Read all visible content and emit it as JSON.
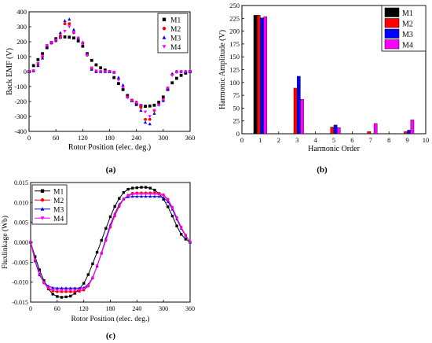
{
  "panels": {
    "a_label": "(a)",
    "b_label": "(b)",
    "c_label": "(c)"
  },
  "colors": {
    "M1": "#000000",
    "M2": "#ff0000",
    "M3": "#0000ff",
    "M4": "#ff00ff"
  },
  "chart_data": [
    {
      "id": "a",
      "type": "scatter",
      "xlabel": "Rotor Position (elec. deg.)",
      "ylabel": "Back EMF (V)",
      "xlim": [
        0,
        360
      ],
      "ylim": [
        -400,
        400
      ],
      "xticks": [
        0,
        60,
        120,
        180,
        240,
        300,
        360
      ],
      "yticks": [
        -400,
        -300,
        -200,
        -100,
        0,
        100,
        200,
        300,
        400
      ],
      "legend_position": "top-right",
      "x": [
        0,
        10,
        20,
        30,
        40,
        50,
        60,
        70,
        80,
        90,
        100,
        110,
        120,
        130,
        140,
        150,
        160,
        170,
        180,
        190,
        200,
        210,
        220,
        230,
        240,
        250,
        260,
        270,
        280,
        290,
        300,
        310,
        320,
        330,
        340,
        350,
        360
      ],
      "series": [
        {
          "name": "M1",
          "marker": "square",
          "values": [
            0,
            40,
            80,
            120,
            160,
            195,
            220,
            230,
            232,
            230,
            225,
            205,
            170,
            120,
            75,
            45,
            25,
            10,
            0,
            -40,
            -80,
            -120,
            -160,
            -195,
            -220,
            -230,
            -232,
            -230,
            -225,
            -205,
            -170,
            -120,
            -75,
            -45,
            -25,
            -10,
            0
          ]
        },
        {
          "name": "M2",
          "marker": "circle",
          "values": [
            0,
            5,
            50,
            100,
            170,
            190,
            205,
            240,
            320,
            320,
            260,
            220,
            190,
            110,
            20,
            0,
            0,
            0,
            0,
            -5,
            -50,
            -100,
            -170,
            -190,
            -205,
            -240,
            -320,
            -320,
            -260,
            -220,
            -190,
            -110,
            -20,
            0,
            0,
            0,
            0
          ]
        },
        {
          "name": "M3",
          "marker": "triangle-up",
          "values": [
            0,
            5,
            40,
            90,
            170,
            195,
            210,
            260,
            340,
            350,
            280,
            220,
            195,
            120,
            15,
            0,
            0,
            0,
            0,
            -5,
            -40,
            -90,
            -170,
            -195,
            -210,
            -260,
            -340,
            -350,
            -280,
            -220,
            -195,
            -120,
            -15,
            0,
            0,
            0,
            0
          ]
        },
        {
          "name": "M4",
          "marker": "triangle-down",
          "values": [
            0,
            5,
            55,
            105,
            175,
            195,
            210,
            225,
            270,
            300,
            260,
            225,
            190,
            110,
            25,
            5,
            0,
            0,
            0,
            -5,
            -55,
            -105,
            -175,
            -195,
            -210,
            -225,
            -270,
            -300,
            -260,
            -225,
            -190,
            -110,
            -25,
            -5,
            0,
            0,
            0
          ]
        }
      ]
    },
    {
      "id": "b",
      "type": "bar",
      "xlabel": "Harmonic Order",
      "ylabel": "Harmonic Amplitude (V)",
      "xlim": [
        0,
        10
      ],
      "ylim": [
        0,
        250
      ],
      "xticks": [
        0,
        1,
        2,
        3,
        4,
        5,
        6,
        7,
        8,
        9,
        10
      ],
      "yticks": [
        0,
        25,
        50,
        75,
        100,
        125,
        150,
        175,
        200,
        225,
        250
      ],
      "legend_position": "top-right",
      "categories": [
        1,
        3,
        5,
        7,
        9
      ],
      "series": [
        {
          "name": "M1",
          "values": [
            231,
            0,
            0,
            0,
            0
          ]
        },
        {
          "name": "M2",
          "values": [
            231,
            89,
            13,
            4,
            4
          ]
        },
        {
          "name": "M3",
          "values": [
            226,
            112,
            17,
            0,
            7
          ]
        },
        {
          "name": "M4",
          "values": [
            228,
            67,
            12,
            20,
            27
          ]
        }
      ]
    },
    {
      "id": "c",
      "type": "line",
      "xlabel": "Rotor Position (elec. deg.)",
      "ylabel": "Fluxlinkage (Wb)",
      "xlim": [
        0,
        360
      ],
      "ylim": [
        -0.015,
        0.015
      ],
      "xticks": [
        0,
        60,
        120,
        180,
        240,
        300,
        360
      ],
      "yticks": [
        -0.015,
        -0.01,
        -0.005,
        0.0,
        0.005,
        0.01,
        0.015
      ],
      "ytick_labels": [
        "-0.015",
        "-0.010",
        "-0.005",
        "0.000",
        "0.005",
        "0.010",
        "0.015"
      ],
      "legend_position": "top-left",
      "x": [
        0,
        10,
        20,
        30,
        40,
        50,
        60,
        70,
        80,
        90,
        100,
        110,
        120,
        130,
        140,
        150,
        160,
        170,
        180,
        190,
        200,
        210,
        220,
        230,
        240,
        250,
        260,
        270,
        280,
        290,
        300,
        310,
        320,
        330,
        340,
        350,
        360
      ],
      "series": [
        {
          "name": "M1",
          "marker": "square",
          "values": [
            0,
            -0.0036,
            -0.0069,
            -0.0096,
            -0.0117,
            -0.013,
            -0.0136,
            -0.0138,
            -0.0137,
            -0.0135,
            -0.0128,
            -0.0117,
            -0.0103,
            -0.0081,
            -0.0054,
            -0.0025,
            0.0005,
            0.0035,
            0.0064,
            0.009,
            0.011,
            0.0125,
            0.0133,
            0.0136,
            0.0137,
            0.0138,
            0.0138,
            0.0136,
            0.0131,
            0.0122,
            0.0108,
            0.0089,
            0.0066,
            0.0041,
            0.002,
            0.0008,
            0
          ]
        },
        {
          "name": "M2",
          "marker": "circle",
          "values": [
            0,
            -0.0045,
            -0.008,
            -0.0102,
            -0.0116,
            -0.0122,
            -0.0124,
            -0.0124,
            -0.0124,
            -0.0124,
            -0.0124,
            -0.0123,
            -0.012,
            -0.011,
            -0.009,
            -0.006,
            -0.0028,
            0.0005,
            0.0038,
            0.0066,
            0.009,
            0.0108,
            0.0118,
            0.0123,
            0.0124,
            0.0124,
            0.0124,
            0.0124,
            0.0124,
            0.0123,
            0.0119,
            0.0108,
            0.0088,
            0.0062,
            0.0038,
            0.0018,
            0
          ]
        },
        {
          "name": "M3",
          "marker": "triangle-up",
          "values": [
            0,
            -0.0047,
            -0.0082,
            -0.01,
            -0.011,
            -0.0114,
            -0.0115,
            -0.0115,
            -0.0115,
            -0.0115,
            -0.0115,
            -0.0115,
            -0.0114,
            -0.0106,
            -0.0088,
            -0.006,
            -0.0026,
            0.001,
            0.0044,
            0.0072,
            0.0095,
            0.0109,
            0.0114,
            0.0115,
            0.0115,
            0.0115,
            0.0115,
            0.0115,
            0.0115,
            0.0115,
            0.0112,
            0.0102,
            0.0083,
            0.0058,
            0.0035,
            0.0016,
            0
          ]
        },
        {
          "name": "M4",
          "marker": "triangle-down",
          "values": [
            0,
            -0.0044,
            -0.0078,
            -0.0101,
            -0.0114,
            -0.0119,
            -0.012,
            -0.012,
            -0.012,
            -0.012,
            -0.012,
            -0.0119,
            -0.0117,
            -0.0108,
            -0.0089,
            -0.0059,
            -0.0027,
            0.0006,
            0.004,
            0.0069,
            0.0092,
            0.0109,
            0.0117,
            0.012,
            0.0121,
            0.0121,
            0.0121,
            0.0121,
            0.0121,
            0.012,
            0.0117,
            0.0106,
            0.0087,
            0.0061,
            0.0037,
            0.0017,
            0
          ]
        }
      ]
    }
  ]
}
